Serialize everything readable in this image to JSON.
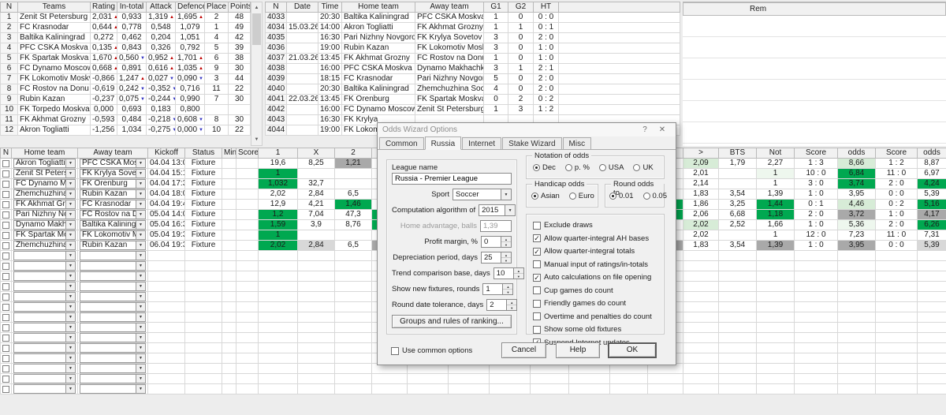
{
  "colors": {
    "green": "#00a850",
    "light_green": "#d7ecd7",
    "faint_green": "#eef7ee",
    "grey_cell": "#a9a9a9",
    "light_grey_cell": "#d8d8d8",
    "up_arrow": "#c00000",
    "down_arrow": "#3434c2"
  },
  "teams_table": {
    "headers": [
      "N",
      "Teams",
      "Rating",
      "In-total",
      "Attack",
      "Defence",
      "Place",
      "Points"
    ],
    "rows": [
      {
        "n": "1",
        "team": "Zenit St Petersburg",
        "r": "2,031",
        "rd": "up",
        "it": "0,933",
        "itd": "",
        "a": "1,319",
        "ad": "up",
        "df": "1,695",
        "dfd": "up",
        "p": "2",
        "pts": "48"
      },
      {
        "n": "2",
        "team": "FC Krasnodar",
        "r": "0,644",
        "rd": "up",
        "it": "0,778",
        "itd": "",
        "a": "0,548",
        "ad": "",
        "df": "1,079",
        "dfd": "",
        "p": "1",
        "pts": "49"
      },
      {
        "n": "3",
        "team": "Baltika Kaliningrad",
        "r": "0,272",
        "rd": "",
        "it": "0,462",
        "itd": "",
        "a": "0,204",
        "ad": "",
        "df": "1,051",
        "dfd": "",
        "p": "4",
        "pts": "42"
      },
      {
        "n": "4",
        "team": "PFC CSKA Moskva",
        "r": "0,135",
        "rd": "up",
        "it": "0,843",
        "itd": "",
        "a": "0,326",
        "ad": "",
        "df": "0,792",
        "dfd": "",
        "p": "5",
        "pts": "39"
      },
      {
        "n": "5",
        "team": "FK Spartak Moskva",
        "r": "1,670",
        "rd": "up",
        "it": "0,560",
        "itd": "down",
        "a": "0,952",
        "ad": "up",
        "df": "1,701",
        "dfd": "up",
        "p": "6",
        "pts": "38"
      },
      {
        "n": "6",
        "team": "FC Dynamo Moscow",
        "r": "0,668",
        "rd": "up",
        "it": "0,891",
        "itd": "",
        "a": "0,616",
        "ad": "up",
        "df": "1,035",
        "dfd": "up",
        "p": "9",
        "pts": "30"
      },
      {
        "n": "7",
        "team": "FK Lokomotiv Moskva",
        "r": "-0,866",
        "rd": "down",
        "it": "1,247",
        "itd": "up",
        "a": "0,027",
        "ad": "down",
        "df": "0,090",
        "dfd": "down",
        "p": "3",
        "pts": "44"
      },
      {
        "n": "8",
        "team": "FC Rostov na Donu",
        "r": "-0,619",
        "rd": "down",
        "it": "0,242",
        "itd": "down",
        "a": "-0,352",
        "ad": "down",
        "df": "0,716",
        "dfd": "",
        "p": "11",
        "pts": "22"
      },
      {
        "n": "9",
        "team": "Rubin Kazan",
        "r": "-0,237",
        "rd": "down",
        "it": "0,075",
        "itd": "down",
        "a": "-0,244",
        "ad": "down",
        "df": "0,990",
        "dfd": "",
        "p": "7",
        "pts": "30"
      },
      {
        "n": "10",
        "team": "FK Torpedo Moskva",
        "r": "0,000",
        "rd": "",
        "it": "0,693",
        "itd": "",
        "a": "0,183",
        "ad": "",
        "df": "0,800",
        "dfd": "",
        "p": "",
        "pts": ""
      },
      {
        "n": "11",
        "team": "FK Akhmat Grozny",
        "r": "-0,593",
        "rd": "down",
        "it": "0,484",
        "itd": "",
        "a": "-0,218",
        "ad": "down",
        "df": "0,608",
        "dfd": "down",
        "p": "8",
        "pts": "30"
      },
      {
        "n": "12",
        "team": "Akron Togliatti",
        "r": "-1,256",
        "rd": "down",
        "it": "1,034",
        "itd": "",
        "a": "-0,275",
        "ad": "down",
        "df": "0,000",
        "dfd": "down",
        "p": "10",
        "pts": "22"
      }
    ]
  },
  "results_table": {
    "headers": [
      "N",
      "Date",
      "Time",
      "Home team",
      "Away team",
      "G1",
      "G2",
      "HT",
      ""
    ],
    "rows": [
      {
        "n": "4033",
        "d": "",
        "t": "20:30",
        "h": "Baltika Kaliningrad",
        "a": "PFC CSKA Moskva",
        "g1": "1",
        "g2": "0",
        "ht": "0 : 0"
      },
      {
        "n": "4034",
        "d": "15.03.26",
        "t": "14:00",
        "h": "Akron Togliatti",
        "a": "FK Akhmat Grozny",
        "g1": "1",
        "g2": "1",
        "ht": "0 : 1"
      },
      {
        "n": "4035",
        "d": "",
        "t": "16:30",
        "h": "Pari Nizhny Novgorod",
        "a": "FK Krylya Sovetov Sam",
        "g1": "3",
        "g2": "0",
        "ht": "2 : 0"
      },
      {
        "n": "4036",
        "d": "",
        "t": "19:00",
        "h": "Rubin Kazan",
        "a": "FK Lokomotiv Moskva",
        "g1": "3",
        "g2": "0",
        "ht": "1 : 0"
      },
      {
        "n": "4037",
        "d": "21.03.26",
        "t": "13:45",
        "h": "FK Akhmat Grozny",
        "a": "FC Rostov na Donu",
        "g1": "1",
        "g2": "0",
        "ht": "1 : 0"
      },
      {
        "n": "4038",
        "d": "",
        "t": "16:00",
        "h": "PFC CSKA Moskva",
        "a": "Dynamo Makhachkala",
        "g1": "3",
        "g2": "1",
        "ht": "2 : 1"
      },
      {
        "n": "4039",
        "d": "",
        "t": "18:15",
        "h": "FC Krasnodar",
        "a": "Pari Nizhny Novgorod",
        "g1": "5",
        "g2": "0",
        "ht": "2 : 0"
      },
      {
        "n": "4040",
        "d": "",
        "t": "20:30",
        "h": "Baltika Kaliningrad",
        "a": "Zhemchuzhina Sochi",
        "g1": "4",
        "g2": "0",
        "ht": "2 : 0"
      },
      {
        "n": "4041",
        "d": "22.03.26",
        "t": "13:45",
        "h": "FK Orenburg",
        "a": "FK Spartak Moskva",
        "g1": "0",
        "g2": "2",
        "ht": "0 : 2"
      },
      {
        "n": "4042",
        "d": "",
        "t": "16:00",
        "h": "FC Dynamo Moscow",
        "a": "Zenit St Petersburg",
        "g1": "1",
        "g2": "3",
        "ht": "1 : 2"
      },
      {
        "n": "4043",
        "d": "",
        "t": "16:30",
        "h": "FK Krylya",
        "a": "",
        "g1": "",
        "g2": "",
        "ht": ""
      },
      {
        "n": "4044",
        "d": "",
        "t": "19:00",
        "h": "FK Lokom",
        "a": "",
        "g1": "",
        "g2": "",
        "ht": ""
      }
    ]
  },
  "rem_table": {
    "header": "Rem"
  },
  "fixtures_table": {
    "headers": {
      "n": "N",
      "home": "Home team",
      "away": "Away team",
      "kickoff": "Kickoff",
      "status": "Status",
      "min": "Min'",
      "score": "Score",
      "c1": "1",
      "cx": "X",
      "c2": "2",
      "f": "",
      "gt": ">",
      "bts": "BTS",
      "not": "Not",
      "s1": "Score",
      "o1": "odds",
      "s2": "Score",
      "o2": "odds"
    },
    "rows": [
      {
        "home": "Akron Togliatti",
        "away": "PFC CSKA Moskva",
        "kickoff": "04.04 13:00",
        "status": "Fixture",
        "c1": "19,6",
        "cx": "8,25",
        "c2": "1,21",
        "c2bg": "grey",
        "gt": "2,09",
        "gtbg": "lgreen",
        "bts": "1,79",
        "not": "2,27",
        "s1": "1 : 3",
        "o1": "8,66",
        "o1bg": "lgreen",
        "s2": "1 : 2",
        "o2": "8,87"
      },
      {
        "home": "Zenit St Petersburg",
        "away": "FK Krylya Sovetov S",
        "kickoff": "04.04 15:15",
        "status": "Fixture",
        "c1": "1",
        "c1bg": "green",
        "cx": "",
        "c2": "",
        "gt": "2,01",
        "bts": "",
        "not": "1",
        "notbg": "fgreen",
        "s1": "10 : 0",
        "o1": "6,84",
        "o1bg": "green",
        "s2": "11 : 0",
        "o2": "6,97"
      },
      {
        "home": "FC Dynamo Mosco",
        "away": "FK Orenburg",
        "kickoff": "04.04 17:30",
        "status": "Fixture",
        "c1": "1,032",
        "c1bg": "green",
        "cx": "32,7",
        "c2": "",
        "gt": "2,14",
        "bts": "",
        "not": "1",
        "s1": "3 : 0",
        "o1": "3,74",
        "o1bg": "green",
        "s2": "2 : 0",
        "o2": "4,24",
        "o2bg": "green"
      },
      {
        "home": "Zhemchuzhina Socl",
        "away": "Rubin Kazan",
        "kickoff": "04.04 18:00",
        "status": "Fixture",
        "c1": "2,02",
        "cx": "2,84",
        "c2": "6,5",
        "gt": "1,83",
        "bts": "3,54",
        "not": "1,39",
        "s1": "1 : 0",
        "o1": "3,95",
        "s2": "0 : 0",
        "o2": "5,39"
      },
      {
        "home": "FK Akhmat Grozny",
        "away": "FC Krasnodar",
        "kickoff": "04.04 19:45",
        "status": "Fixture",
        "c1": "12,9",
        "cx": "4,21",
        "c2": "1,46",
        "c2bg": "green",
        "f8bg": "green",
        "gt": "1,86",
        "bts": "3,25",
        "not": "1,44",
        "notbg": "green",
        "s1": "0 : 1",
        "o1": "4,46",
        "o1bg": "lgreen",
        "s2": "0 : 2",
        "o2": "5,16",
        "o2bg": "green"
      },
      {
        "home": "Pari Nizhny Novgor",
        "away": "FC Rostov na Donu",
        "kickoff": "05.04 14:00",
        "status": "Fixture",
        "c1": "1,2",
        "c1bg": "green",
        "cx": "7,04",
        "c2": "47,3",
        "f1bg": "green",
        "f8bg": "green",
        "gt": "2,06",
        "bts": "6,68",
        "not": "1,18",
        "notbg": "green",
        "s1": "2 : 0",
        "o1": "3,72",
        "o1bg": "grey",
        "s2": "1 : 0",
        "o2": "4,17",
        "o2bg": "grey"
      },
      {
        "home": "Dynamo Makhachk",
        "away": "Baltika Kaliningrad",
        "kickoff": "05.04 16:30",
        "status": "Fixture",
        "c1": "1,59",
        "c1bg": "green",
        "cx": "3,9",
        "c2": "8,76",
        "f1bg": "green",
        "gt": "2,02",
        "gtbg": "lgreen",
        "bts": "2,52",
        "not": "1,66",
        "s1": "1 : 0",
        "o1": "5,36",
        "o1bg": "fgreen",
        "s2": "2 : 0",
        "o2": "6,26",
        "o2bg": "green"
      },
      {
        "home": "FK Spartak Moskva",
        "away": "FK Lokomotiv Mosk",
        "kickoff": "05.04 19:30",
        "status": "Fixture",
        "c1": "1",
        "c1bg": "green",
        "cx": "",
        "c2": "",
        "gt": "2,02",
        "bts": "",
        "not": "1",
        "s1": "12 : 0",
        "o1": "7,23",
        "s2": "11 : 0",
        "o2": "7,31"
      },
      {
        "home": "Zhemchuzhina Socl",
        "away": "Rubin Kazan",
        "kickoff": "06.04 19:30",
        "status": "Fixture",
        "c1": "2,02",
        "c1bg": "green",
        "cx": "2,84",
        "cxbg": "lgrey",
        "c2": "6,5",
        "f1bg": "grey",
        "f8bg": "grey",
        "gt": "1,83",
        "bts": "3,54",
        "not": "1,39",
        "notbg": "grey",
        "s1": "1 : 0",
        "o1": "3,95",
        "o1bg": "grey",
        "s2": "0 : 0",
        "o2": "5,39",
        "o2bg": "lgrey"
      },
      {},
      {},
      {},
      {},
      {},
      {},
      {},
      {},
      {},
      {},
      {},
      {},
      {},
      {}
    ]
  },
  "dialog": {
    "title": "Odds Wizard Options",
    "help_glyph": "?",
    "close_glyph": "✕",
    "tabs": [
      "Common",
      "Russia",
      "Internet",
      "Stake Wizard",
      "Misc"
    ],
    "active_tab": "Russia",
    "league_group": {
      "label": "League name",
      "league_name": "Russia - Premier League",
      "fields": [
        {
          "label": "Sport",
          "value": "Soccer",
          "type": "combo"
        },
        {
          "label": "Computation algorithm of",
          "value": "2015",
          "type": "combo"
        },
        {
          "label": "Home advantage, balls",
          "value": "1,39",
          "type": "text",
          "disabled": true
        },
        {
          "label": "Profit margin, %",
          "value": "0",
          "type": "spin"
        },
        {
          "label": "Depreciation period, days",
          "value": "25",
          "type": "spin"
        },
        {
          "label": "Trend comparison base, days",
          "value": "10",
          "type": "spin"
        },
        {
          "label": "Show new fixtures, rounds",
          "value": "1",
          "type": "spin"
        },
        {
          "label": "Round date tolerance, days",
          "value": "2",
          "type": "spin"
        }
      ],
      "groups_button": "Groups and rules of ranking..."
    },
    "notation_group": {
      "label": "Notation of odds",
      "options": [
        {
          "label": "Dec",
          "selected": true
        },
        {
          "label": "p. %",
          "selected": false
        },
        {
          "label": "USA",
          "selected": false
        },
        {
          "label": "UK",
          "selected": false
        }
      ]
    },
    "handicap_group": {
      "label": "Handicap odds",
      "options": [
        {
          "label": "Asian",
          "selected": true
        },
        {
          "label": "Euro",
          "selected": false
        }
      ]
    },
    "round_group": {
      "label": "Round odds to",
      "options": [
        {
          "label": "0.01",
          "selected": true
        },
        {
          "label": "0.05",
          "selected": false
        }
      ]
    },
    "checkboxes": [
      {
        "label": "Exclude draws",
        "checked": false
      },
      {
        "label": "Allow quarter-integral AH bases",
        "checked": true
      },
      {
        "label": "Allow quarter-integral totals",
        "checked": true
      },
      {
        "label": "Manual input of ratings/in-totals",
        "checked": false
      },
      {
        "label": "Auto calculations on file opening",
        "checked": true
      },
      {
        "label": "Cup games do count",
        "checked": false
      },
      {
        "label": "Friendly games do count",
        "checked": false
      },
      {
        "label": "Overtime and penalties do count",
        "checked": false
      },
      {
        "label": "Show some old fixtures",
        "checked": false
      },
      {
        "label": "Suspend Internet updates",
        "checked": true
      }
    ],
    "use_common_label": "Use common options",
    "buttons": {
      "cancel": "Cancel",
      "help": "Help",
      "ok": "OK"
    }
  }
}
